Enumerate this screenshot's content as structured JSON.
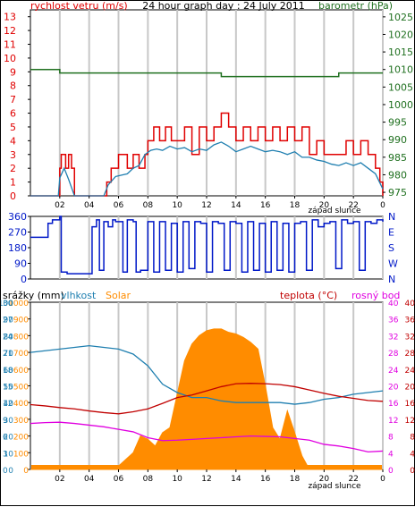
{
  "colors": {
    "wind": "#e00000",
    "wind_avg": "#1f7fb0",
    "baro": "#207020",
    "dir": "#0018c8",
    "temp": "#c00000",
    "dew": "#e000e0",
    "solar": "#ff8c00",
    "humid": "#1f7fb0",
    "rain": "#1f7fb0",
    "grid": "#c8c8c8"
  },
  "chart_data": [
    {
      "type": "line",
      "title": "24 hour graph day : 24 July 2011",
      "xlabel": "západ slunce",
      "ylabel_left": "rychlost vetru (m/s)",
      "ylabel_right": "barometr (hPa)",
      "x_ticks": [
        "02",
        "04",
        "06",
        "08",
        "10",
        "12",
        "14",
        "16",
        "18",
        "20",
        "22",
        "0"
      ],
      "y_ticks_left": [
        "0",
        "1",
        "2",
        "3",
        "4",
        "5",
        "6",
        "7",
        "8",
        "9",
        "10",
        "11",
        "12",
        "13"
      ],
      "y_ticks_right": [
        "975",
        "980",
        "985",
        "990",
        "995",
        "1000",
        "1005",
        "1010",
        "1015",
        "1020",
        "1025"
      ],
      "ylim_left": [
        0,
        13.5
      ],
      "ylim_right": [
        974,
        1027
      ],
      "grid": true,
      "series": [
        {
          "key": "gust",
          "axis": "left",
          "x": [
            0,
            1,
            1.9,
            2,
            2.1,
            2.4,
            2.6,
            2.8,
            3,
            4,
            5,
            5.2,
            5.5,
            5.8,
            6,
            6.3,
            6.6,
            7,
            7.4,
            7.8,
            8,
            8.4,
            8.8,
            9.2,
            9.6,
            10,
            10.5,
            11,
            11.5,
            12,
            12.5,
            13,
            13.5,
            14,
            14.5,
            15,
            15.5,
            16,
            16.5,
            17,
            17.5,
            18,
            18.5,
            19,
            19.5,
            20,
            20.5,
            21,
            21.5,
            22,
            22.5,
            23,
            23.5,
            23.8,
            24
          ],
          "y": [
            0,
            0,
            0,
            2,
            3,
            2,
            3,
            2,
            0,
            0,
            0,
            1,
            2,
            2,
            3,
            3,
            2,
            3,
            2,
            3,
            4,
            5,
            4,
            5,
            4,
            4,
            5,
            3,
            5,
            4,
            5,
            6,
            5,
            4,
            5,
            4,
            5,
            4,
            5,
            4,
            5,
            4,
            5,
            3,
            4,
            3,
            3,
            3,
            4,
            3,
            4,
            3,
            2,
            1,
            0
          ]
        },
        {
          "key": "average",
          "axis": "left",
          "x": [
            0,
            1,
            1.9,
            2,
            2.3,
            2.6,
            3,
            4,
            5,
            5.3,
            5.8,
            6.2,
            6.6,
            7,
            7.4,
            7.8,
            8.2,
            8.6,
            9,
            9.5,
            10,
            10.5,
            11,
            11.5,
            12,
            12.5,
            13,
            13.5,
            14,
            14.5,
            15,
            15.5,
            16,
            16.5,
            17,
            17.5,
            18,
            18.5,
            19,
            19.5,
            20,
            20.5,
            21,
            21.5,
            22,
            22.5,
            23,
            23.5,
            24
          ],
          "y": [
            0,
            0,
            0,
            1.3,
            2,
            1.2,
            0,
            0,
            0,
            0.8,
            1.4,
            1.5,
            1.6,
            2,
            2.2,
            3,
            3.3,
            3.4,
            3.3,
            3.6,
            3.4,
            3.5,
            3.2,
            3.4,
            3.3,
            3.7,
            3.9,
            3.6,
            3.2,
            3.4,
            3.6,
            3.4,
            3.2,
            3.3,
            3.2,
            3.0,
            3.2,
            2.8,
            2.8,
            2.6,
            2.5,
            2.3,
            2.2,
            2.4,
            2.2,
            2.4,
            2.0,
            1.6,
            0.5
          ]
        },
        {
          "key": "pressure",
          "axis": "right",
          "x": [
            0,
            2,
            3,
            4,
            5,
            6,
            7,
            8,
            9,
            10,
            11,
            12,
            13,
            14,
            15,
            16,
            17,
            18,
            19,
            20,
            21,
            22,
            23,
            24
          ],
          "y": [
            1010,
            1009,
            1009,
            1009,
            1009,
            1009,
            1009,
            1009,
            1009,
            1009,
            1009,
            1009,
            1008,
            1008,
            1008,
            1008,
            1008,
            1008,
            1008,
            1008,
            1009,
            1009,
            1009,
            1009
          ]
        }
      ]
    },
    {
      "type": "line",
      "y_ticks_left": [
        "0",
        "90",
        "180",
        "270",
        "360"
      ],
      "y_labels_right": [
        "N",
        "W",
        "S",
        "E",
        "N"
      ],
      "ylim": [
        0,
        360
      ],
      "series": [
        {
          "key": "wind_direction",
          "x": [
            0,
            1,
            1.2,
            1.5,
            2,
            2.1,
            2.5,
            2.8,
            3,
            4,
            4.2,
            4.5,
            4.7,
            5,
            5.3,
            5.6,
            5.8,
            6,
            6.3,
            6.6,
            7,
            7.2,
            7.5,
            8,
            8.4,
            8.8,
            9.2,
            9.6,
            10,
            10.4,
            10.8,
            11.2,
            11.6,
            12,
            12.4,
            12.8,
            13.2,
            13.6,
            14,
            14.4,
            14.8,
            15.2,
            15.6,
            16,
            16.4,
            16.8,
            17.2,
            17.6,
            18,
            18.4,
            18.8,
            19.2,
            19.6,
            20,
            20.4,
            20.8,
            21.2,
            21.6,
            22,
            22.4,
            22.8,
            23.2,
            23.6,
            24
          ],
          "y": [
            240,
            240,
            320,
            340,
            360,
            40,
            30,
            30,
            30,
            30,
            300,
            340,
            50,
            330,
            300,
            340,
            330,
            330,
            40,
            340,
            330,
            40,
            50,
            330,
            40,
            330,
            50,
            320,
            40,
            330,
            60,
            330,
            320,
            40,
            330,
            320,
            50,
            330,
            320,
            40,
            330,
            50,
            320,
            40,
            330,
            50,
            320,
            40,
            320,
            330,
            50,
            340,
            300,
            320,
            330,
            60,
            340,
            320,
            330,
            50,
            330,
            320,
            340,
            330
          ]
        }
      ]
    },
    {
      "type": "line",
      "xlabel": "západ slunce",
      "x_ticks": [
        "02",
        "04",
        "06",
        "08",
        "10",
        "12",
        "14",
        "16",
        "18",
        "20",
        "22",
        "0"
      ],
      "ylabel_rain": "srážky (mm)",
      "ylabel_humidity": "vlhkost",
      "ylabel_solar": "Solar",
      "ylabel_temp": "teplota (°C)",
      "ylabel_dew": "rosný bod",
      "y_ticks_solar": [
        "0",
        "100",
        "200",
        "300",
        "400",
        "500",
        "600",
        "700",
        "800",
        "900",
        "1000"
      ],
      "y_ticks_humidity": [
        "0",
        "10",
        "20",
        "30",
        "40",
        "50",
        "60",
        "70",
        "80",
        "90",
        "100"
      ],
      "y_ticks_rain": [
        "0",
        "3",
        "6",
        "9",
        "12",
        "15",
        "18",
        "21",
        "24",
        "27",
        "30"
      ],
      "y_ticks_temp": [
        "0",
        "4",
        "8",
        "12",
        "16",
        "20",
        "24",
        "28",
        "32",
        "36",
        "40"
      ],
      "y_ticks_dew": [
        "0",
        "4",
        "8",
        "12",
        "16",
        "20",
        "24",
        "28",
        "32",
        "36",
        "40"
      ],
      "ylim_solar": [
        0,
        1000
      ],
      "ylim_temp": [
        0,
        40
      ],
      "ylim_humidity": [
        0,
        100
      ],
      "series": [
        {
          "key": "solar",
          "axis": "solar",
          "type": "area",
          "x": [
            0,
            5,
            5.5,
            6,
            6.5,
            7,
            7.5,
            8,
            8.5,
            9,
            9.5,
            10,
            10.5,
            11,
            11.5,
            12,
            12.5,
            13,
            13.5,
            14,
            14.5,
            15,
            15.5,
            16,
            16.5,
            17,
            17.5,
            18,
            18.5,
            19,
            24
          ],
          "y": [
            0,
            0,
            15,
            20,
            60,
            100,
            200,
            180,
            140,
            220,
            250,
            450,
            650,
            750,
            800,
            830,
            840,
            840,
            820,
            810,
            790,
            760,
            720,
            500,
            250,
            180,
            350,
            220,
            80,
            0,
            0
          ]
        },
        {
          "key": "humidity",
          "axis": "humidity",
          "x": [
            0,
            1,
            2,
            3,
            4,
            5,
            6,
            7,
            8,
            9,
            10,
            11,
            12,
            13,
            14,
            15,
            16,
            17,
            18,
            19,
            20,
            21,
            22,
            23,
            24
          ],
          "y": [
            70,
            71,
            72,
            73,
            74,
            73,
            72,
            69,
            62,
            51,
            46,
            43,
            43,
            41,
            40,
            40,
            40,
            40,
            39,
            40,
            42,
            43,
            45,
            46,
            47
          ]
        },
        {
          "key": "temperature",
          "axis": "temp",
          "x": [
            0,
            1,
            2,
            3,
            4,
            5,
            6,
            7,
            8,
            9,
            10,
            11,
            12,
            13,
            14,
            15,
            16,
            17,
            18,
            19,
            20,
            21,
            22,
            23,
            24
          ],
          "y": [
            15.5,
            15.2,
            14.8,
            14.5,
            14.0,
            13.6,
            13.3,
            13.8,
            14.5,
            15.8,
            17.2,
            17.8,
            18.8,
            19.8,
            20.5,
            20.6,
            20.5,
            20.3,
            19.8,
            19.0,
            18.2,
            17.5,
            17.0,
            16.5,
            16.3
          ]
        },
        {
          "key": "dew_point",
          "axis": "temp",
          "x": [
            0,
            1,
            2,
            3,
            4,
            5,
            6,
            7,
            8,
            9,
            10,
            11,
            12,
            13,
            14,
            15,
            16,
            17,
            18,
            19,
            20,
            21,
            22,
            23,
            24
          ],
          "y": [
            11.0,
            11.2,
            11.3,
            11.0,
            10.6,
            10.2,
            9.6,
            9.0,
            7.6,
            6.9,
            7.0,
            7.2,
            7.4,
            7.6,
            7.8,
            8.0,
            7.9,
            7.8,
            7.4,
            7.0,
            6.0,
            5.6,
            5.0,
            4.2,
            4.4
          ]
        },
        {
          "key": "rain",
          "axis": "rain",
          "x": [
            0,
            24
          ],
          "y": [
            0,
            0
          ]
        }
      ]
    }
  ]
}
